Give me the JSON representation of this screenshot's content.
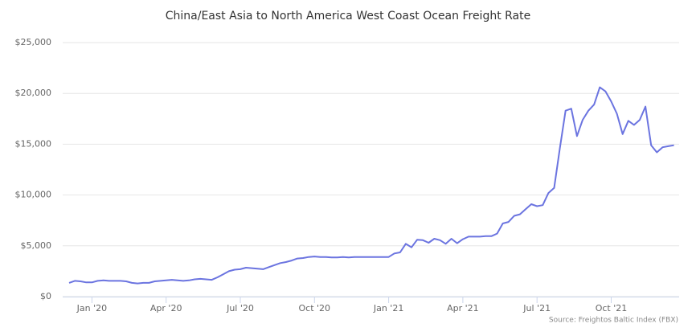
{
  "chart_data": {
    "type": "line",
    "title": "China/East Asia to North America West Coast Ocean Freight Rate",
    "source": "Source: Freightos Baltic Index (FBX)",
    "categories": [
      null,
      null,
      null,
      null,
      "Jan '20",
      null,
      null,
      null,
      null,
      null,
      null,
      null,
      null,
      null,
      null,
      null,
      null,
      "Apr '20",
      null,
      null,
      null,
      null,
      null,
      null,
      null,
      null,
      null,
      null,
      null,
      null,
      "Jul '20",
      null,
      null,
      null,
      null,
      null,
      null,
      null,
      null,
      null,
      null,
      null,
      null,
      "Oct '20",
      null,
      null,
      null,
      null,
      null,
      null,
      null,
      null,
      null,
      null,
      null,
      null,
      "Jan '21",
      null,
      null,
      null,
      null,
      null,
      null,
      null,
      null,
      null,
      null,
      null,
      null,
      "Apr '21",
      null,
      null,
      null,
      null,
      null,
      null,
      null,
      null,
      null,
      null,
      null,
      null,
      "Jul '21",
      null,
      null,
      null,
      null,
      null,
      null,
      null,
      null,
      null,
      null,
      null,
      null,
      "Oct '21",
      null,
      null,
      null,
      null,
      null,
      null,
      null,
      null,
      null,
      null,
      null
    ],
    "values": [
      1350,
      1550,
      1500,
      1400,
      1400,
      1550,
      1600,
      1550,
      1550,
      1550,
      1500,
      1350,
      1300,
      1350,
      1350,
      1500,
      1550,
      1600,
      1650,
      1600,
      1550,
      1600,
      1700,
      1750,
      1700,
      1650,
      1900,
      2200,
      2500,
      2650,
      2700,
      2850,
      2800,
      2750,
      2700,
      2900,
      3100,
      3300,
      3400,
      3550,
      3750,
      3800,
      3900,
      3950,
      3900,
      3900,
      3850,
      3850,
      3900,
      3850,
      3900,
      3900,
      3900,
      3900,
      3900,
      3900,
      3900,
      4250,
      4350,
      5200,
      4850,
      5600,
      5550,
      5300,
      5700,
      5550,
      5200,
      5700,
      5250,
      5650,
      5900,
      5900,
      5900,
      5950,
      5950,
      6200,
      7200,
      7350,
      7950,
      8100,
      8600,
      9100,
      8900,
      9000,
      10200,
      10700,
      14600,
      18300,
      18500,
      15800,
      17400,
      18300,
      18900,
      20600,
      20200,
      19200,
      18000,
      16000,
      17300,
      16900,
      17400,
      18700,
      14900,
      14200,
      14700,
      14800,
      14900
    ],
    "color": "#6b74e0",
    "ylim": [
      0,
      25000
    ],
    "yticks": [
      {
        "value": 0,
        "label": "$0"
      },
      {
        "value": 5000,
        "label": "$5,000"
      },
      {
        "value": 10000,
        "label": "$10,000"
      },
      {
        "value": 15000,
        "label": "$15,000"
      },
      {
        "value": 20000,
        "label": "$20,000"
      },
      {
        "value": 25000,
        "label": "$25,000"
      }
    ],
    "grid": true
  }
}
